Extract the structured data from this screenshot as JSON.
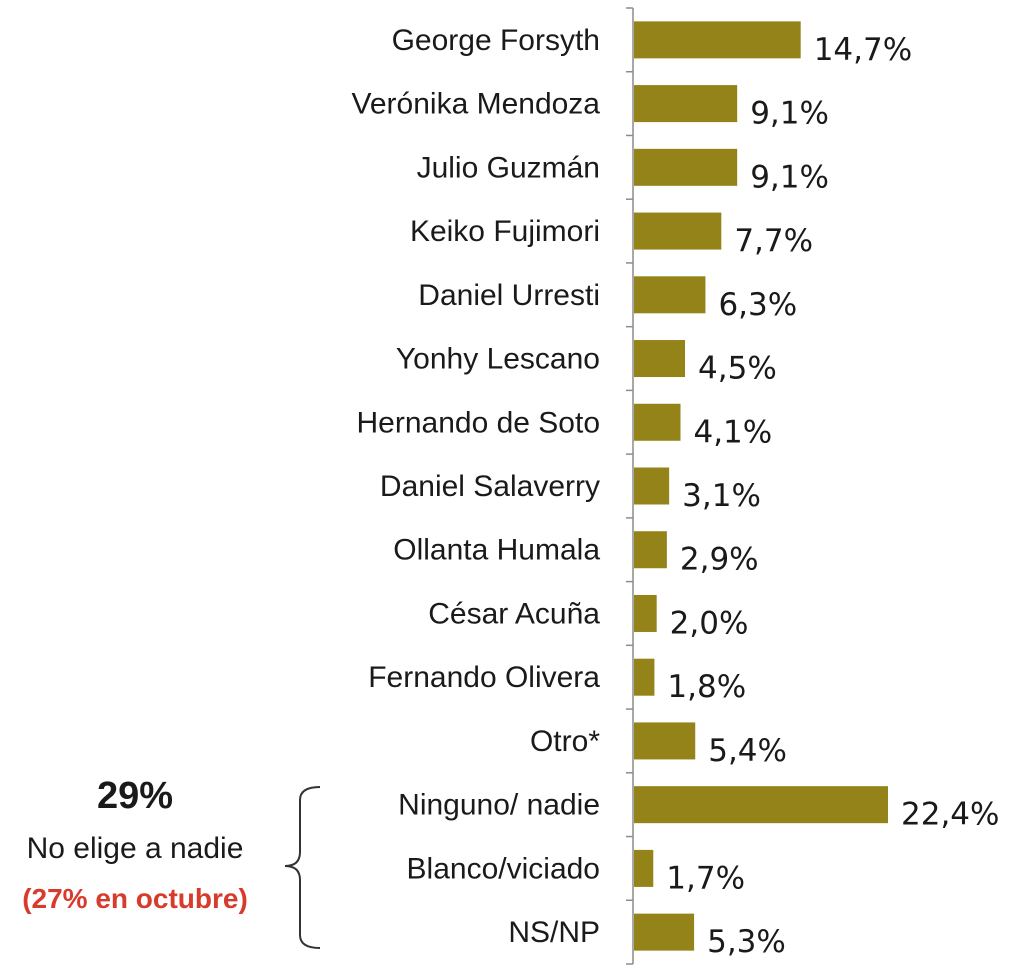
{
  "chart_data": {
    "type": "bar",
    "orientation": "horizontal",
    "categories": [
      "George Forsyth",
      "Verónika Mendoza",
      "Julio Guzmán",
      "Keiko Fujimori",
      "Daniel Urresti",
      "Yonhy Lescano",
      "Hernando de Soto",
      "Daniel Salaverry",
      "Ollanta Humala",
      "César Acuña",
      "Fernando Olivera",
      "Otro*",
      "Ninguno/ nadie",
      "Blanco/viciado",
      "NS/NP"
    ],
    "values": [
      14.7,
      9.1,
      9.1,
      7.7,
      6.3,
      4.5,
      4.1,
      3.1,
      2.9,
      2.0,
      1.8,
      5.4,
      22.4,
      1.7,
      5.3
    ],
    "value_labels": [
      "14,7%",
      "9,1%",
      "9,1%",
      "7,7%",
      "6,3%",
      "4,5%",
      "4,1%",
      "3,1%",
      "2,9%",
      "2,0%",
      "1,8%",
      "5,4%",
      "22,4%",
      "1,7%",
      "5,3%"
    ],
    "xlim": [
      0,
      22.4
    ],
    "bar_color": "#948318",
    "grid": false,
    "legend": "none"
  },
  "annotation": {
    "headline": "29%",
    "text": "No elige a nadie",
    "highlight": "(27% en octubre)",
    "highlight_color": "#d83a2b"
  }
}
